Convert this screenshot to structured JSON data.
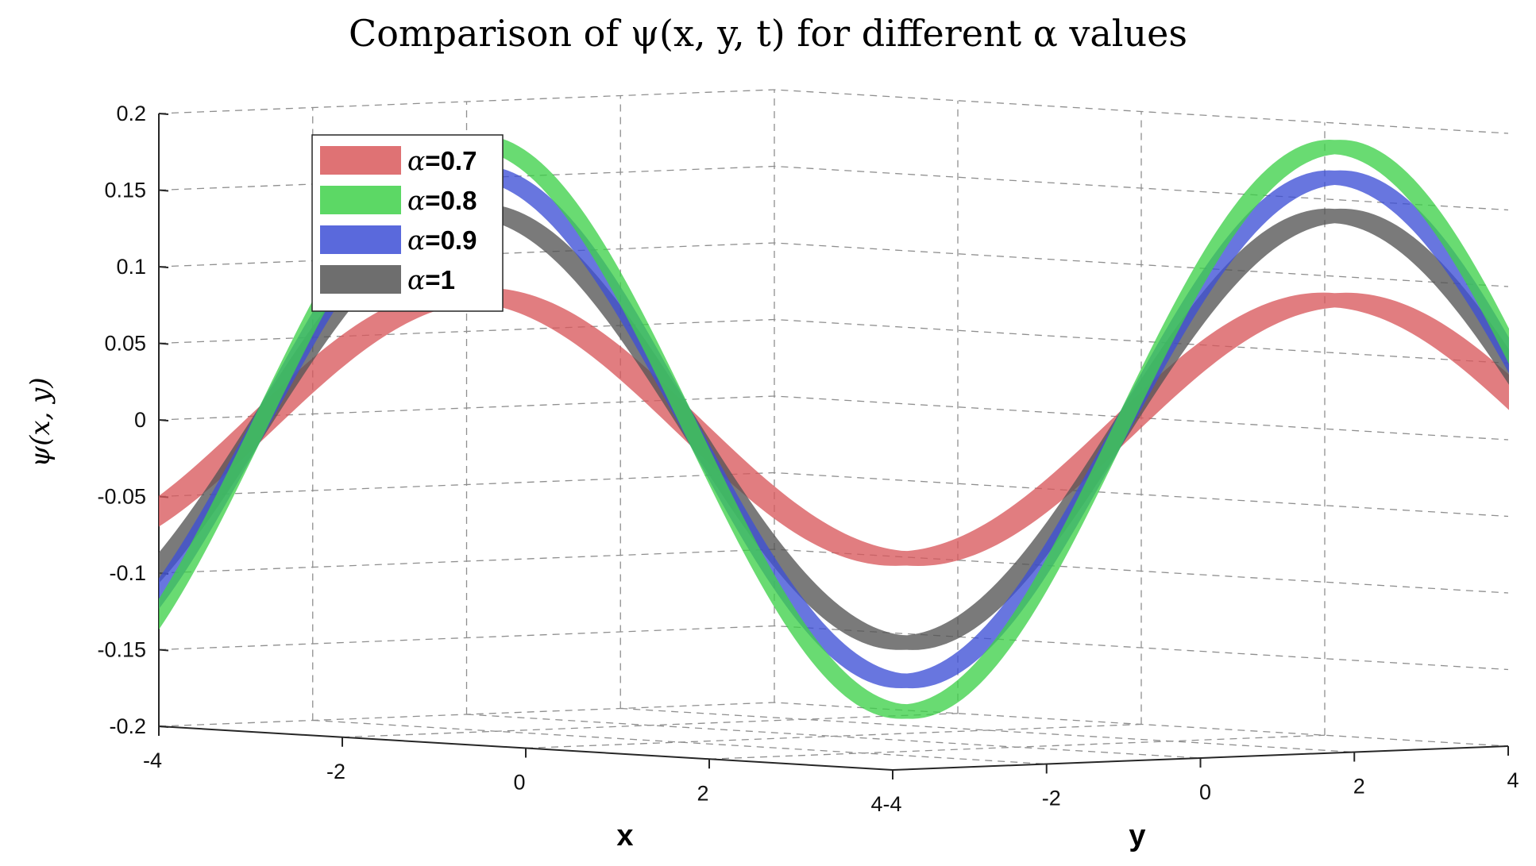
{
  "chart_data": {
    "type": "surface-ribbon-3d",
    "title": "Comparison of ψ(x, y, t) for different α values",
    "xlabel": "x",
    "ylabel": "y",
    "zlabel": "ψ(x, y)",
    "xlim": [
      -4,
      4
    ],
    "ylim": [
      -4,
      4
    ],
    "zlim": [
      -0.2,
      0.2
    ],
    "x_ticks": [
      "-4",
      "-2",
      "0",
      "2",
      "4-4"
    ],
    "y_ticks": [
      "-2",
      "0",
      "2",
      "4"
    ],
    "z_ticks": [
      "0.2",
      "0.15",
      "0.1",
      "0.05",
      "0",
      "-0.05",
      "-0.1",
      "-0.15",
      "-0.2"
    ],
    "z_tick_values": [
      0.2,
      0.15,
      0.1,
      0.05,
      0,
      -0.05,
      -0.1,
      -0.15,
      -0.2
    ],
    "grid": true,
    "legend_position": "top-left",
    "series": [
      {
        "name": "=0.7",
        "alpha_symbol": "α",
        "alpha": 0.7,
        "color": "#d9595c",
        "amplitude": 0.085,
        "phase_shift": 0.0
      },
      {
        "name": "=0.8",
        "alpha_symbol": "α",
        "alpha": 0.8,
        "color": "#3fd14a",
        "amplitude": 0.185,
        "phase_shift": 0.0
      },
      {
        "name": "=0.9",
        "alpha_symbol": "α",
        "alpha": 0.9,
        "color": "#3d4fd6",
        "amplitude": 0.165,
        "phase_shift": 0.0
      },
      {
        "name": "=1",
        "alpha_symbol": "α",
        "alpha": 1.0,
        "color": "#555555",
        "amplitude": 0.14,
        "phase_shift": 0.0
      }
    ]
  }
}
